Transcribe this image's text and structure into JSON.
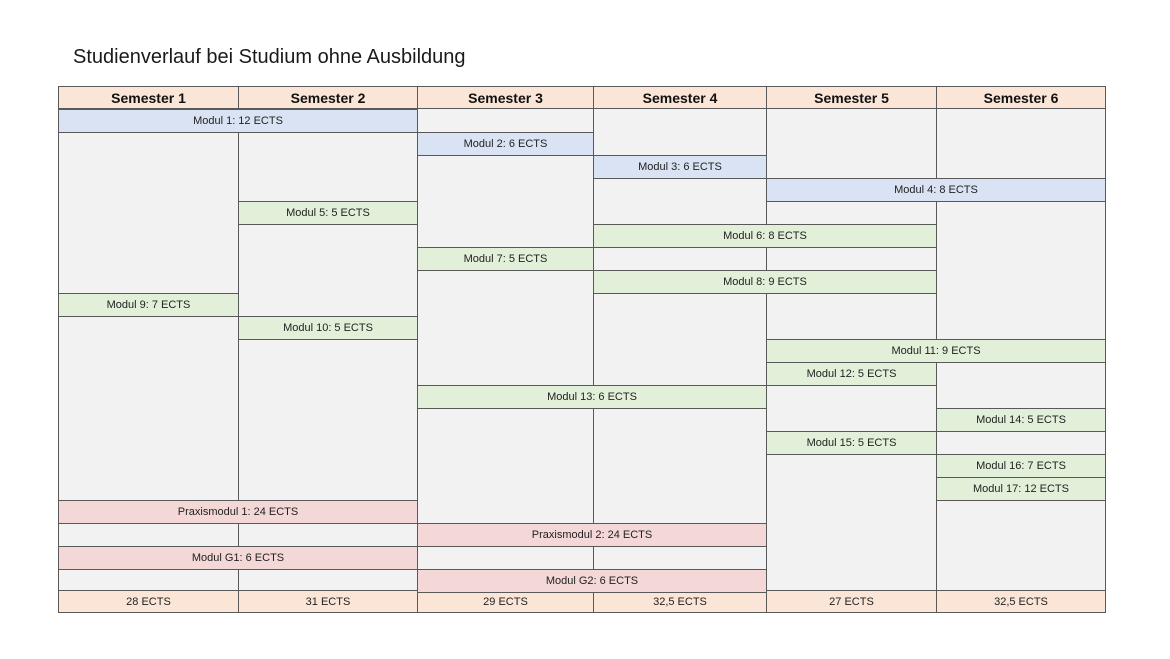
{
  "title": "Studienverlauf bei Studium ohne Ausbildung",
  "semesters": [
    "Semester 1",
    "Semester 2",
    "Semester 3",
    "Semester 4",
    "Semester 5",
    "Semester 6"
  ],
  "totals": [
    "28 ECTS",
    "31 ECTS",
    "29 ECTS",
    "32,5 ECTS",
    "27 ECTS",
    "32,5 ECTS"
  ],
  "modules": [
    {
      "label": "Modul 1: 12 ECTS",
      "type": "standard",
      "start_semester": 1,
      "end_semester": 2,
      "row": 1
    },
    {
      "label": "Modul 2: 6 ECTS",
      "type": "standard",
      "start_semester": 3,
      "end_semester": 3,
      "row": 2
    },
    {
      "label": "Modul 3: 6 ECTS",
      "type": "standard",
      "start_semester": 4,
      "end_semester": 4,
      "row": 3
    },
    {
      "label": "Modul 4: 8 ECTS",
      "type": "standard",
      "start_semester": 5,
      "end_semester": 6,
      "row": 4
    },
    {
      "label": "Modul 5: 5 ECTS",
      "type": "elective",
      "start_semester": 2,
      "end_semester": 2,
      "row": 5
    },
    {
      "label": "Modul 6: 8 ECTS",
      "type": "elective",
      "start_semester": 4,
      "end_semester": 5,
      "row": 6
    },
    {
      "label": "Modul 7: 5 ECTS",
      "type": "elective",
      "start_semester": 3,
      "end_semester": 3,
      "row": 7
    },
    {
      "label": "Modul 8: 9 ECTS",
      "type": "elective",
      "start_semester": 4,
      "end_semester": 5,
      "row": 8
    },
    {
      "label": "Modul 9: 7 ECTS",
      "type": "elective",
      "start_semester": 1,
      "end_semester": 1,
      "row": 9
    },
    {
      "label": "Modul 10: 5 ECTS",
      "type": "elective",
      "start_semester": 2,
      "end_semester": 2,
      "row": 10
    },
    {
      "label": "Modul 11: 9 ECTS",
      "type": "elective",
      "start_semester": 5,
      "end_semester": 6,
      "row": 11
    },
    {
      "label": "Modul 12: 5 ECTS",
      "type": "elective",
      "start_semester": 5,
      "end_semester": 5,
      "row": 12
    },
    {
      "label": "Modul 13: 6 ECTS",
      "type": "elective",
      "start_semester": 3,
      "end_semester": 4,
      "row": 13
    },
    {
      "label": "Modul 14: 5 ECTS",
      "type": "elective",
      "start_semester": 6,
      "end_semester": 6,
      "row": 14
    },
    {
      "label": "Modul 15: 5 ECTS",
      "type": "elective",
      "start_semester": 5,
      "end_semester": 5,
      "row": 15
    },
    {
      "label": "Modul 16: 7 ECTS",
      "type": "elective",
      "start_semester": 6,
      "end_semester": 6,
      "row": 16
    },
    {
      "label": "Modul 17: 12 ECTS",
      "type": "elective",
      "start_semester": 6,
      "end_semester": 6,
      "row": 17
    },
    {
      "label": "Praxismodul 1: 24 ECTS",
      "type": "practice",
      "start_semester": 1,
      "end_semester": 2,
      "row": 18
    },
    {
      "label": "Praxismodul 2: 24 ECTS",
      "type": "practice",
      "start_semester": 3,
      "end_semester": 4,
      "row": 19
    },
    {
      "label": "Modul G1: 6 ECTS",
      "type": "practice",
      "start_semester": 1,
      "end_semester": 2,
      "row": 20
    },
    {
      "label": "Modul G2: 6 ECTS",
      "type": "practice",
      "start_semester": 3,
      "end_semester": 4,
      "row": 21
    }
  ],
  "colors": {
    "header": "#fbe5d6",
    "standard": "#dae3f3",
    "elective": "#e2f0d9",
    "practice": "#f4d7d7",
    "empty": "#f2f2f2",
    "border": "#595959"
  }
}
